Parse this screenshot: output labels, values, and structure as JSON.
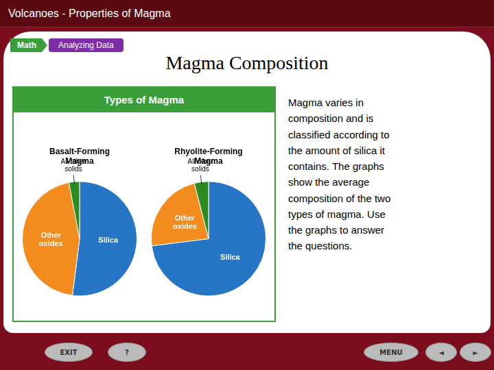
{
  "title": "Volcanoes - Properties of Magma",
  "subtitle": "Magma Composition",
  "annotations": [
    "Math",
    "Analyzing Data",
    "Types of Magma",
    "Magma varies in\ncomposition and is\nclassified according to\nthe amount of silica it\ncontains. The graphs\nshow the average\ncomposition of the two\ntypes of magma. Use\nthe graphs to answer\nthe questions.",
    "EXIT",
    "?",
    "MENU",
    "◄",
    "►"
  ],
  "chart_data": [
    {
      "type": "pie",
      "title": "Basalt-Forming\nMagma",
      "categories": [
        "Silica",
        "Other\noxides",
        "All other\nsolids"
      ],
      "values": [
        52,
        45,
        3
      ],
      "colors": [
        "#2776C6",
        "#F28C1E",
        "#2E8B22"
      ],
      "legend": false
    },
    {
      "type": "pie",
      "title": "Rhyolite-Forming\nMagma",
      "categories": [
        "Silica",
        "Other\noxides",
        "All other\nsolids"
      ],
      "values": [
        73,
        23,
        4
      ],
      "colors": [
        "#2776C6",
        "#F28C1E",
        "#2E8B22"
      ],
      "legend": false
    }
  ]
}
